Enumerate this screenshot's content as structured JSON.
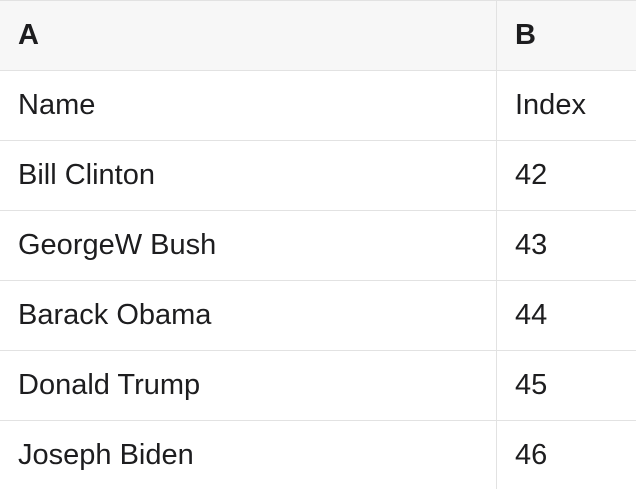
{
  "table": {
    "column_headers": [
      "A",
      "B"
    ],
    "rows": [
      [
        "Name",
        "Index"
      ],
      [
        "Bill Clinton",
        "42"
      ],
      [
        "GeorgeW Bush",
        "43"
      ],
      [
        "Barack Obama",
        "44"
      ],
      [
        "Donald Trump",
        "45"
      ],
      [
        "Joseph Biden",
        "46"
      ]
    ]
  },
  "colors": {
    "header_background": "#f7f7f7",
    "row_background": "#ffffff",
    "border": "#e2e2e2",
    "text": "#1d1d1f"
  }
}
